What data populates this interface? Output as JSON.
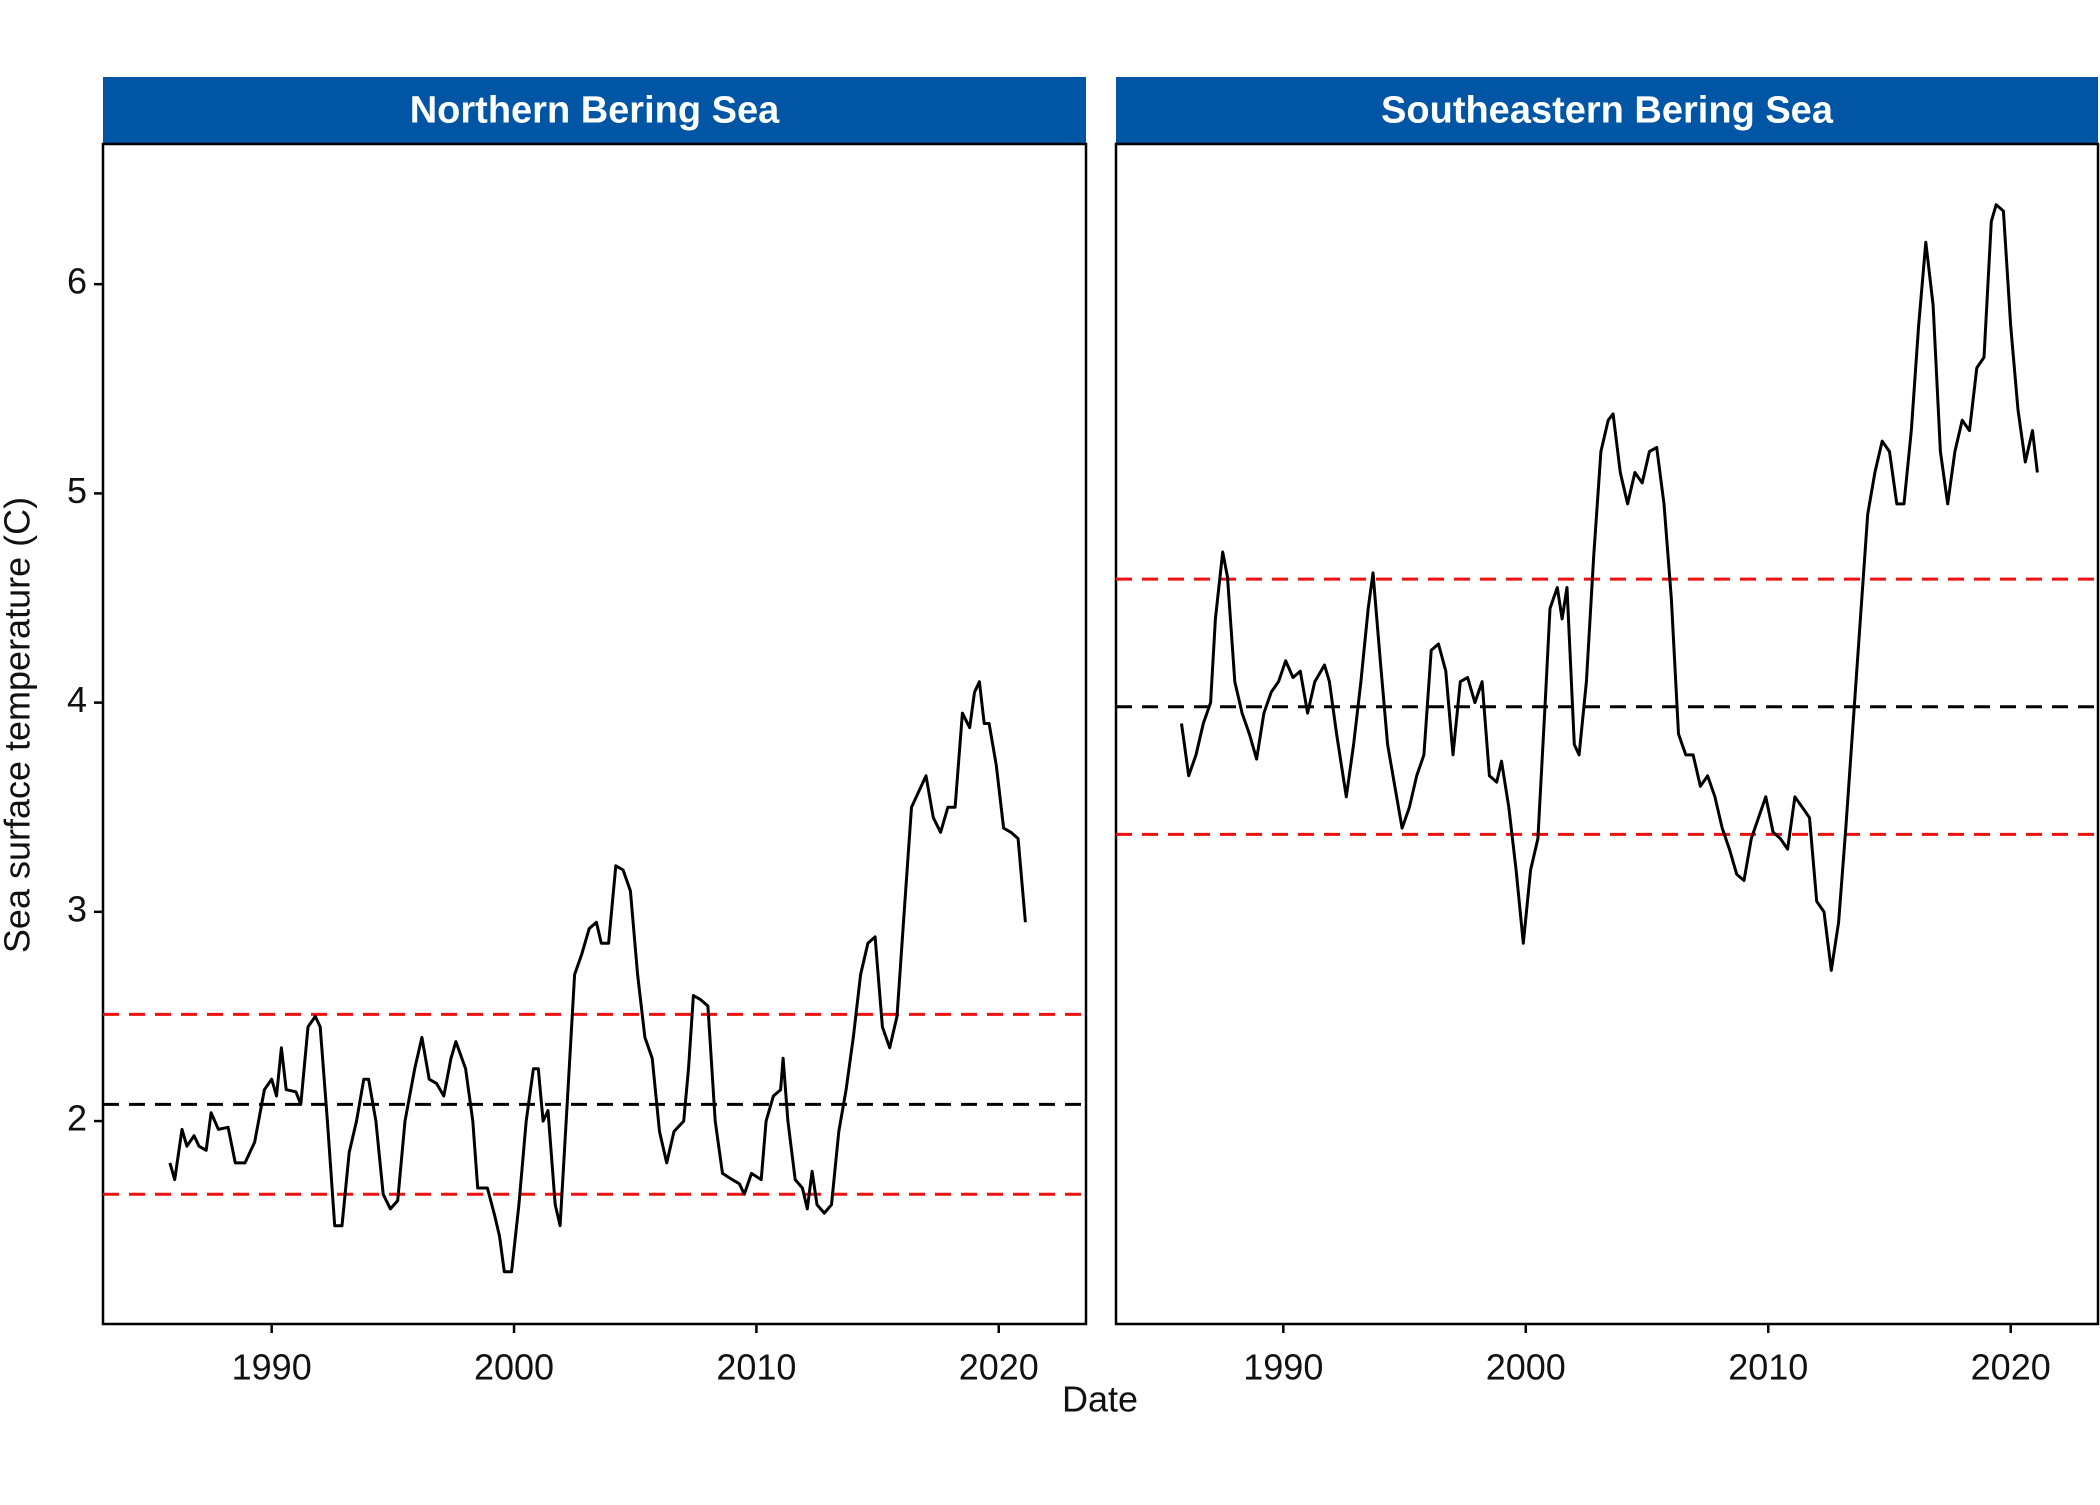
{
  "xlabel": "Date",
  "ylabel": "Sea surface temperature (C)",
  "chart_data": [
    {
      "type": "line",
      "title": "Northern Bering Sea",
      "xlim": [
        1983.04,
        2023.6
      ],
      "xticks": [
        1990,
        2000,
        2010,
        2020
      ],
      "ylim": [
        1.03,
        6.67
      ],
      "yticks": [
        2,
        3,
        4,
        5,
        6
      ],
      "reference_lines": [
        {
          "value": 2.51,
          "color": "#ee1111"
        },
        {
          "value": 2.08,
          "color": "#000000"
        },
        {
          "value": 1.65,
          "color": "#ee1111"
        }
      ],
      "x": [
        1985.8,
        1986.0,
        1986.3,
        1986.5,
        1986.8,
        1987.0,
        1987.3,
        1987.5,
        1987.8,
        1988.2,
        1988.5,
        1988.9,
        1989.3,
        1989.7,
        1990.0,
        1990.2,
        1990.4,
        1990.6,
        1991.0,
        1991.2,
        1991.5,
        1991.8,
        1992.0,
        1992.3,
        1992.6,
        1992.9,
        1993.2,
        1993.5,
        1993.8,
        1994.0,
        1994.3,
        1994.6,
        1994.9,
        1995.2,
        1995.5,
        1995.9,
        1996.2,
        1996.5,
        1996.8,
        1997.1,
        1997.4,
        1997.6,
        1998.0,
        1998.3,
        1998.5,
        1998.9,
        1999.2,
        1999.4,
        1999.6,
        1999.9,
        2000.2,
        2000.5,
        2000.8,
        2001.0,
        2001.2,
        2001.4,
        2001.7,
        2001.9,
        2002.2,
        2002.5,
        2002.8,
        2003.1,
        2003.4,
        2003.6,
        2003.9,
        2004.2,
        2004.5,
        2004.8,
        2005.1,
        2005.4,
        2005.7,
        2006.0,
        2006.3,
        2006.6,
        2007.0,
        2007.2,
        2007.4,
        2007.7,
        2008.0,
        2008.3,
        2008.6,
        2009.0,
        2009.3,
        2009.5,
        2009.8,
        2010.2,
        2010.4,
        2010.7,
        2011.0,
        2011.1,
        2011.3,
        2011.6,
        2011.9,
        2012.1,
        2012.3,
        2012.5,
        2012.8,
        2013.1,
        2013.4,
        2013.7,
        2014.0,
        2014.3,
        2014.6,
        2014.9,
        2015.2,
        2015.5,
        2015.8,
        2016.1,
        2016.4,
        2016.8,
        2017.0,
        2017.3,
        2017.6,
        2017.9,
        2018.2,
        2018.5,
        2018.8,
        2019.0,
        2019.2,
        2019.4,
        2019.6,
        2019.9,
        2020.2,
        2020.5,
        2020.8,
        2021.1
      ],
      "series": [
        {
          "color": "#000000",
          "values": [
            1.8,
            1.72,
            1.96,
            1.88,
            1.93,
            1.88,
            1.86,
            2.04,
            1.96,
            1.97,
            1.8,
            1.8,
            1.9,
            2.15,
            2.2,
            2.12,
            2.35,
            2.15,
            2.14,
            2.08,
            2.45,
            2.5,
            2.45,
            2.0,
            1.5,
            1.5,
            1.85,
            2.0,
            2.2,
            2.2,
            2.0,
            1.65,
            1.58,
            1.62,
            2.0,
            2.25,
            2.4,
            2.2,
            2.18,
            2.12,
            2.3,
            2.38,
            2.25,
            2.0,
            1.68,
            1.68,
            1.55,
            1.45,
            1.28,
            1.28,
            1.6,
            2.0,
            2.25,
            2.25,
            2.0,
            2.05,
            1.6,
            1.5,
            2.1,
            2.7,
            2.8,
            2.92,
            2.95,
            2.85,
            2.85,
            3.22,
            3.2,
            3.1,
            2.7,
            2.4,
            2.3,
            1.95,
            1.8,
            1.95,
            2.0,
            2.25,
            2.6,
            2.58,
            2.55,
            2.0,
            1.75,
            1.72,
            1.7,
            1.65,
            1.75,
            1.72,
            2.0,
            2.12,
            2.15,
            2.3,
            2.0,
            1.72,
            1.68,
            1.58,
            1.76,
            1.6,
            1.56,
            1.6,
            1.95,
            2.15,
            2.4,
            2.7,
            2.85,
            2.88,
            2.45,
            2.35,
            2.5,
            3.0,
            3.5,
            3.6,
            3.65,
            3.45,
            3.38,
            3.5,
            3.5,
            3.95,
            3.88,
            4.05,
            4.1,
            3.9,
            3.9,
            3.7,
            3.4,
            3.38,
            3.35,
            2.95
          ]
        }
      ]
    },
    {
      "type": "line",
      "title": "Southeastern Bering Sea",
      "xlim": [
        1983.1,
        2023.6
      ],
      "xticks": [
        1990,
        2000,
        2010,
        2020
      ],
      "ylim": [
        1.03,
        6.67
      ],
      "reference_lines": [
        {
          "value": 4.59,
          "color": "#ee1111"
        },
        {
          "value": 3.98,
          "color": "#000000"
        },
        {
          "value": 3.37,
          "color": "#ee1111"
        }
      ],
      "x": [
        1985.8,
        1986.1,
        1986.4,
        1986.7,
        1987.0,
        1987.2,
        1987.5,
        1987.7,
        1988.0,
        1988.3,
        1988.6,
        1988.9,
        1989.2,
        1989.5,
        1989.8,
        1990.1,
        1990.4,
        1990.7,
        1991.0,
        1991.3,
        1991.7,
        1991.9,
        1992.2,
        1992.6,
        1992.9,
        1993.2,
        1993.5,
        1993.7,
        1994.0,
        1994.3,
        1994.6,
        1994.9,
        1995.2,
        1995.5,
        1995.8,
        1996.1,
        1996.4,
        1996.7,
        1997.0,
        1997.3,
        1997.6,
        1997.9,
        1998.2,
        1998.5,
        1998.8,
        1999.0,
        1999.3,
        1999.6,
        1999.9,
        2000.2,
        2000.5,
        2000.8,
        2001.0,
        2001.3,
        2001.5,
        2001.7,
        2002.0,
        2002.2,
        2002.5,
        2002.8,
        2003.1,
        2003.4,
        2003.6,
        2003.9,
        2004.2,
        2004.5,
        2004.8,
        2005.1,
        2005.4,
        2005.7,
        2006.0,
        2006.3,
        2006.6,
        2006.9,
        2007.2,
        2007.5,
        2007.8,
        2008.1,
        2008.4,
        2008.7,
        2009.0,
        2009.3,
        2009.6,
        2009.9,
        2010.2,
        2010.5,
        2010.8,
        2011.1,
        2011.4,
        2011.7,
        2012.0,
        2012.3,
        2012.6,
        2012.9,
        2013.2,
        2013.5,
        2013.8,
        2014.1,
        2014.4,
        2014.7,
        2015.0,
        2015.3,
        2015.6,
        2015.9,
        2016.2,
        2016.5,
        2016.8,
        2017.1,
        2017.4,
        2017.7,
        2018.0,
        2018.3,
        2018.6,
        2018.9,
        2019.2,
        2019.4,
        2019.7,
        2020.0,
        2020.3,
        2020.6,
        2020.9,
        2021.1
      ],
      "series": [
        {
          "color": "#000000",
          "values": [
            3.9,
            3.65,
            3.75,
            3.9,
            4.0,
            4.4,
            4.72,
            4.6,
            4.1,
            3.95,
            3.85,
            3.73,
            3.95,
            4.05,
            4.1,
            4.2,
            4.12,
            4.15,
            3.95,
            4.1,
            4.18,
            4.1,
            3.85,
            3.55,
            3.8,
            4.1,
            4.45,
            4.62,
            4.2,
            3.8,
            3.6,
            3.4,
            3.5,
            3.65,
            3.75,
            4.25,
            4.28,
            4.15,
            3.75,
            4.1,
            4.12,
            4.0,
            4.1,
            3.65,
            3.62,
            3.72,
            3.5,
            3.2,
            2.85,
            3.2,
            3.35,
            4.0,
            4.45,
            4.55,
            4.4,
            4.55,
            3.8,
            3.75,
            4.1,
            4.7,
            5.2,
            5.35,
            5.38,
            5.1,
            4.95,
            5.1,
            5.05,
            5.2,
            5.22,
            4.95,
            4.5,
            3.85,
            3.75,
            3.75,
            3.6,
            3.65,
            3.55,
            3.4,
            3.3,
            3.18,
            3.15,
            3.35,
            3.45,
            3.55,
            3.38,
            3.35,
            3.3,
            3.55,
            3.5,
            3.45,
            3.05,
            3.0,
            2.72,
            2.95,
            3.4,
            3.9,
            4.4,
            4.9,
            5.1,
            5.25,
            5.2,
            4.95,
            4.95,
            5.3,
            5.8,
            6.2,
            5.9,
            5.2,
            4.95,
            5.2,
            5.35,
            5.3,
            5.6,
            5.65,
            6.3,
            6.38,
            6.35,
            5.8,
            5.4,
            5.15,
            5.3,
            5.1
          ]
        }
      ]
    }
  ]
}
